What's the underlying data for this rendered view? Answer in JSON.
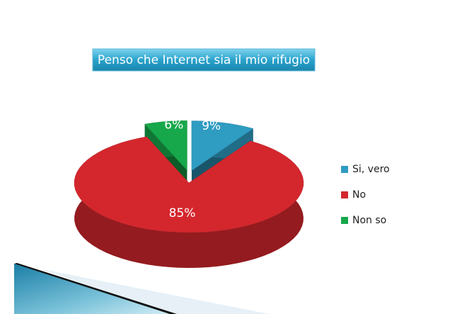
{
  "chart_data": {
    "type": "pie",
    "title": "Penso che Internet sia il mio rifugio",
    "categories": [
      "Si, vero",
      "No",
      "Non so"
    ],
    "values": [
      9,
      85,
      6
    ],
    "value_labels": [
      "9%",
      "85%",
      "6%"
    ],
    "colors": [
      "#2f9cc2",
      "#d4272d",
      "#17a84b"
    ],
    "legend": "right"
  }
}
